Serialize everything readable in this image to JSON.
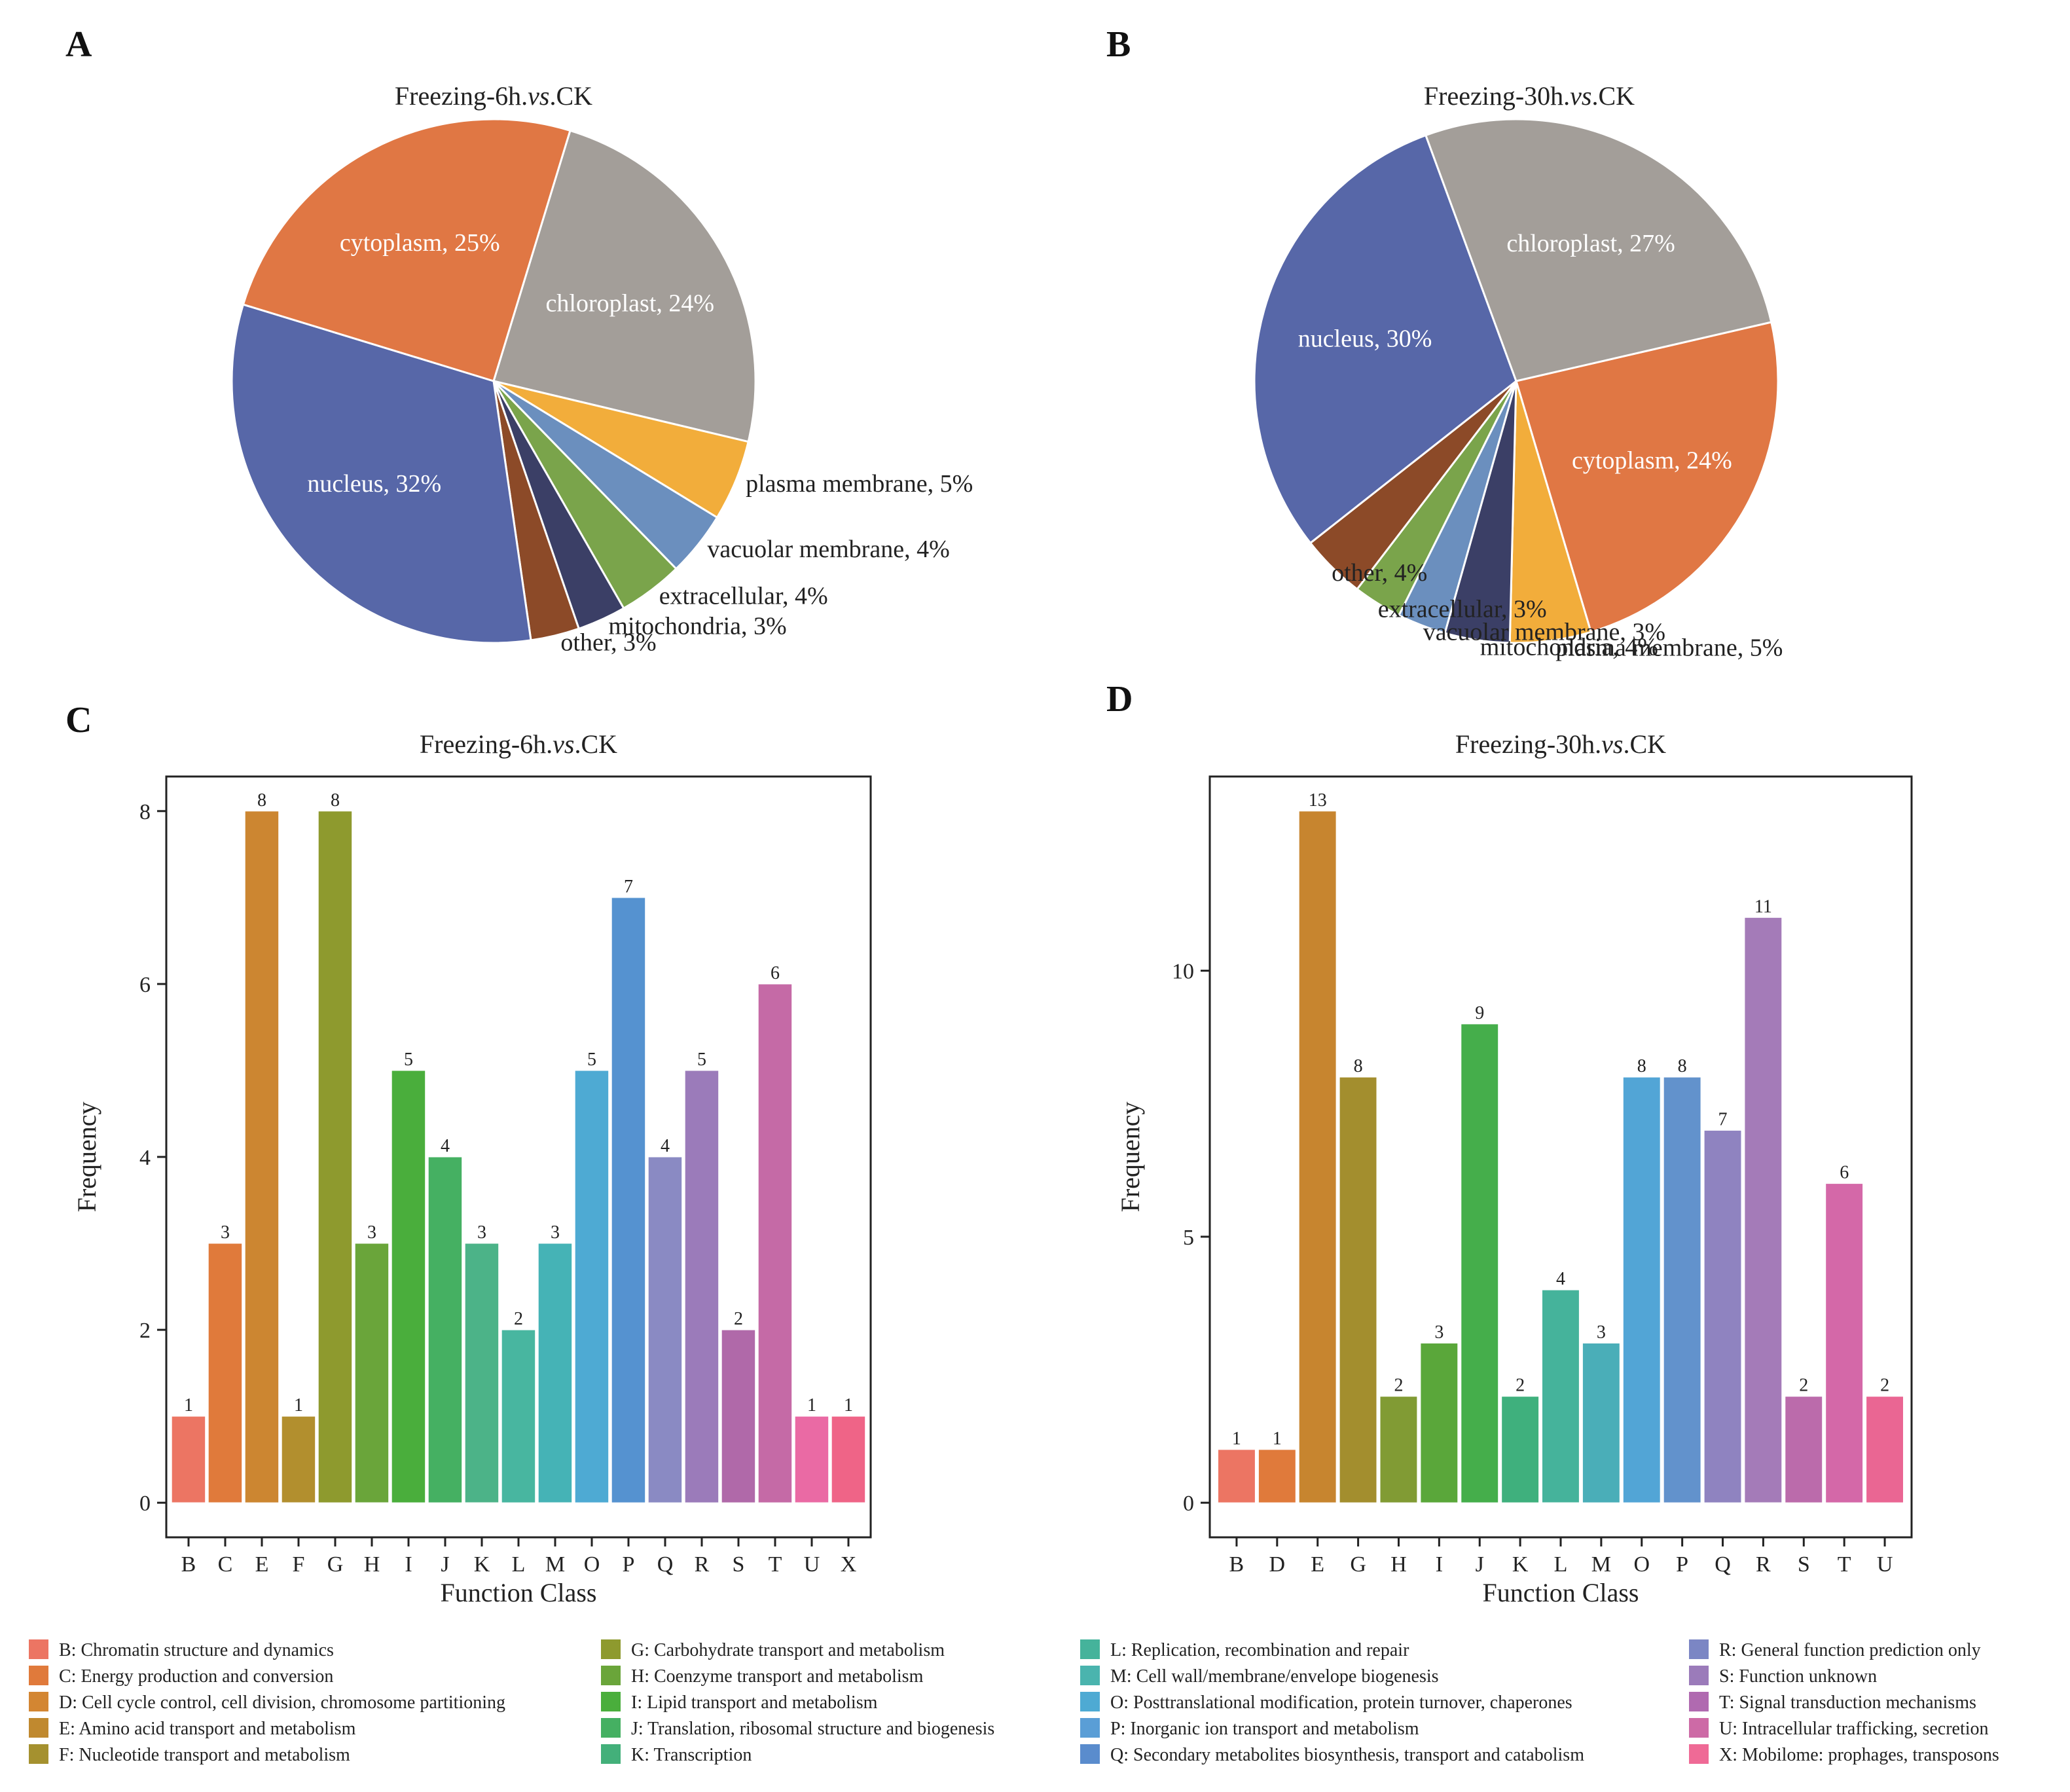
{
  "panels": {
    "A": "A",
    "B": "B",
    "C": "C",
    "D": "D"
  },
  "chart_data": [
    {
      "id": "A",
      "type": "pie",
      "title": "Freezing-6h.vs.CK",
      "title_parts": [
        "Freezing-6h.",
        "vs",
        ".CK"
      ],
      "start_angle_deg": 73,
      "slices": [
        {
          "label": "chloroplast, 24%",
          "name": "chloroplast",
          "value": 24,
          "color": "#a39e99",
          "label_inside": true
        },
        {
          "label": "plasma membrane, 5%",
          "name": "plasma membrane",
          "value": 5,
          "color": "#f2ad3b",
          "label_inside": false
        },
        {
          "label": "vacuolar membrane, 4%",
          "name": "vacuolar membrane",
          "value": 4,
          "color": "#6b8fbe",
          "label_inside": false
        },
        {
          "label": "extracellular, 4%",
          "name": "extracellular",
          "value": 4,
          "color": "#7aa44b",
          "label_inside": false
        },
        {
          "label": "mitochondria, 3%",
          "name": "mitochondria",
          "value": 3,
          "color": "#3b3f66",
          "label_inside": false
        },
        {
          "label": "other, 3%",
          "name": "other",
          "value": 3,
          "color": "#8c4a28",
          "label_inside": false
        },
        {
          "label": "nucleus, 32%",
          "name": "nucleus",
          "value": 32,
          "color": "#5767a8",
          "label_inside": true
        },
        {
          "label": "cytoplasm, 25%",
          "name": "cytoplasm",
          "value": 25,
          "color": "#e07744",
          "label_inside": true
        }
      ]
    },
    {
      "id": "B",
      "type": "pie",
      "title": "Freezing-30h.vs.CK",
      "title_parts": [
        "Freezing-30h.",
        "vs",
        ".CK"
      ],
      "start_angle_deg": 13,
      "slices": [
        {
          "label": "cytoplasm, 24%",
          "name": "cytoplasm",
          "value": 24,
          "color": "#e07744",
          "label_inside": true
        },
        {
          "label": "plasma membrane, 5%",
          "name": "plasma membrane",
          "value": 5,
          "color": "#f2ad3b",
          "label_inside": false
        },
        {
          "label": "mitochondria, 4%",
          "name": "mitochondria",
          "value": 4,
          "color": "#3b3f66",
          "label_inside": false
        },
        {
          "label": "vacuolar membrane, 3%",
          "name": "vacuolar membrane",
          "value": 3,
          "color": "#6b8fbe",
          "label_inside": false
        },
        {
          "label": "extracellular, 3%",
          "name": "extracellular",
          "value": 3,
          "color": "#7aa44b",
          "label_inside": false
        },
        {
          "label": "other, 4%",
          "name": "other",
          "value": 4,
          "color": "#8c4a28",
          "label_inside": false
        },
        {
          "label": "nucleus, 30%",
          "name": "nucleus",
          "value": 30,
          "color": "#5767a8",
          "label_inside": true
        },
        {
          "label": "chloroplast, 27%",
          "name": "chloroplast",
          "value": 27,
          "color": "#a39e99",
          "label_inside": true
        }
      ]
    },
    {
      "id": "C",
      "type": "bar",
      "title": "Freezing-6h.vs.CK",
      "title_parts": [
        "Freezing-6h.",
        "vs",
        ".CK"
      ],
      "xlabel": "Function Class",
      "ylabel": "Frequency",
      "ylim": [
        -0.4,
        8.4
      ],
      "yticks": [
        0,
        2,
        4,
        6,
        8
      ],
      "categories": [
        "B",
        "C",
        "E",
        "F",
        "G",
        "H",
        "I",
        "J",
        "K",
        "L",
        "M",
        "O",
        "P",
        "Q",
        "R",
        "S",
        "T",
        "U",
        "X"
      ],
      "values": [
        1,
        3,
        8,
        1,
        8,
        3,
        5,
        4,
        3,
        2,
        3,
        5,
        7,
        4,
        5,
        2,
        6,
        1,
        1
      ],
      "colors": [
        "#ec7563",
        "#e07a3b",
        "#cc8631",
        "#b28f2e",
        "#8e9a2e",
        "#6aa53a",
        "#4aae3c",
        "#45b062",
        "#4cb388",
        "#48b6a0",
        "#45b3b6",
        "#4eaad3",
        "#5592d0",
        "#8a8ac3",
        "#9b7bba",
        "#b069a9",
        "#c56aa6",
        "#ea6aa4",
        "#ef6487"
      ]
    },
    {
      "id": "D",
      "type": "bar",
      "title": "Freezing-30h.vs.CK",
      "title_parts": [
        "Freezing-30h.",
        "vs",
        ".CK"
      ],
      "xlabel": "Function Class",
      "ylabel": "Frequency",
      "ylim": [
        -0.65,
        13.65
      ],
      "yticks": [
        0,
        5,
        10
      ],
      "categories": [
        "B",
        "D",
        "E",
        "G",
        "H",
        "I",
        "J",
        "K",
        "L",
        "M",
        "O",
        "P",
        "Q",
        "R",
        "S",
        "T",
        "U"
      ],
      "values": [
        1,
        1,
        13,
        8,
        2,
        3,
        9,
        2,
        4,
        3,
        8,
        8,
        7,
        11,
        2,
        6,
        2
      ],
      "colors": [
        "#ec7563",
        "#e07a3b",
        "#c7852f",
        "#a38e2e",
        "#819b34",
        "#5aa73a",
        "#45ae4b",
        "#3fb07d",
        "#45b39b",
        "#4aaeb8",
        "#52a5d6",
        "#6292cc",
        "#8f83c0",
        "#a47bb8",
        "#bb6bab",
        "#d468a8",
        "#ea6693"
      ]
    }
  ],
  "legend": {
    "columns": [
      [
        {
          "text": "B: Chromatin structure and dynamics",
          "color": "#ec7563"
        },
        {
          "text": "C: Energy production and conversion",
          "color": "#e07a3b"
        },
        {
          "text": "D: Cell cycle control, cell division, chromosome partitioning",
          "color": "#d38632"
        },
        {
          "text": "E: Amino acid transport and metabolism",
          "color": "#c0892f"
        },
        {
          "text": "F: Nucleotide transport and metabolism",
          "color": "#a5912f"
        }
      ],
      [
        {
          "text": "G: Carbohydrate transport and metabolism",
          "color": "#8e9a2e"
        },
        {
          "text": "H: Coenzyme transport and metabolism",
          "color": "#6aa53a"
        },
        {
          "text": "I: Lipid transport and metabolism",
          "color": "#4aae3c"
        },
        {
          "text": "J: Translation, ribosomal structure and biogenesis",
          "color": "#45b062"
        },
        {
          "text": "K: Transcription",
          "color": "#43b07a"
        }
      ],
      [
        {
          "text": "L: Replication, recombination and repair",
          "color": "#45b39b"
        },
        {
          "text": "M: Cell wall/membrane/envelope biogenesis",
          "color": "#4ab4ae"
        },
        {
          "text": "O: Posttranslational modification, protein turnover, chaperones",
          "color": "#4eaad3"
        },
        {
          "text": "P: Inorganic ion transport and metabolism",
          "color": "#5a9ed6"
        },
        {
          "text": "Q: Secondary metabolites biosynthesis, transport and catabolism",
          "color": "#5a8ccd"
        }
      ],
      [
        {
          "text": "R: General function prediction only",
          "color": "#7b86c4"
        },
        {
          "text": "S: Function unknown",
          "color": "#9b7bba"
        },
        {
          "text": "T: Signal transduction mechanisms",
          "color": "#b06ab0"
        },
        {
          "text": "U: Intracellular trafficking, secretion",
          "color": "#cd6aa6"
        },
        {
          "text": "X: Mobilome: prophages, transposons",
          "color": "#ef6a96"
        }
      ]
    ]
  }
}
